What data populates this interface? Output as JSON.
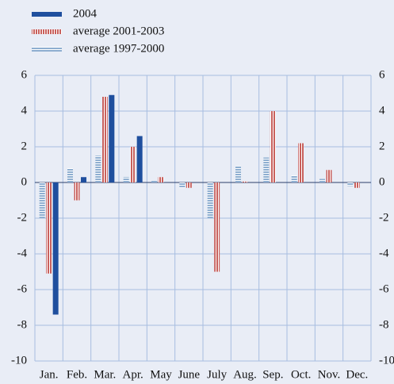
{
  "chart_data": {
    "type": "bar",
    "categories": [
      "Jan.",
      "Feb.",
      "Mar.",
      "Apr.",
      "May",
      "June",
      "July",
      "Aug.",
      "Sep.",
      "Oct.",
      "Nov.",
      "Dec."
    ],
    "series": [
      {
        "name": "2004",
        "color": "#1f4f9e",
        "values": [
          -7.4,
          0.3,
          4.9,
          2.6,
          null,
          null,
          null,
          null,
          null,
          null,
          null,
          null
        ]
      },
      {
        "name": "average 2001-2003",
        "color": "#c8605c",
        "values": [
          -5.1,
          -1.0,
          4.8,
          2.0,
          0.3,
          -0.3,
          -5.0,
          0.05,
          4.0,
          2.2,
          0.7,
          -0.3
        ]
      },
      {
        "name": "average 1997-2000",
        "color": "#8eaed0",
        "values": [
          -2.0,
          0.8,
          1.5,
          0.3,
          0.1,
          -0.3,
          -2.0,
          0.9,
          1.4,
          0.4,
          0.2,
          -0.2
        ]
      }
    ],
    "ylim": [
      -10,
      6
    ],
    "yticks": [
      6,
      4,
      2,
      0,
      -2,
      -4,
      -6,
      -8,
      -10
    ],
    "grid": true
  }
}
